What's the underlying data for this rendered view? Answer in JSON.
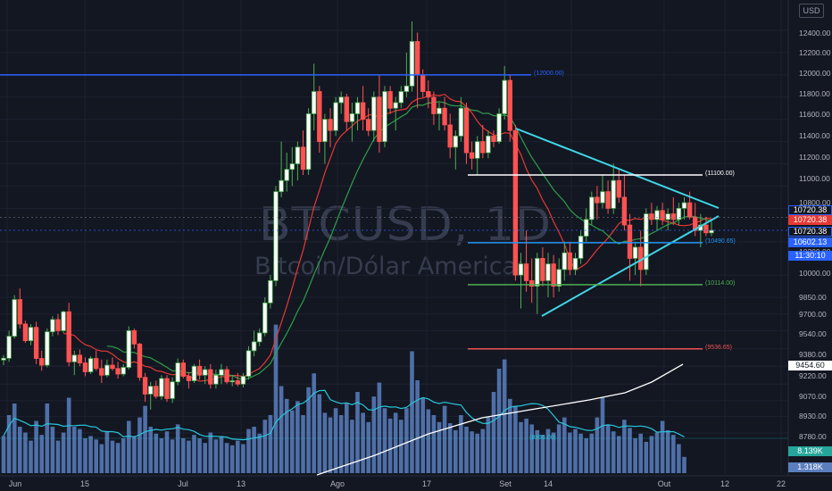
{
  "symbol": {
    "ticker": "BTCUSD, 1D",
    "description": "Bitcoin/Dólar Americano"
  },
  "currency": "USD",
  "colors": {
    "up": "#4caf50",
    "down": "#ff5252",
    "volume": "#5b7fbe",
    "background": "#131722",
    "axis_text": "#b2b5be",
    "triangle": "#3fd6e6",
    "ma_slow": "#e53935",
    "ma_fast": "#2e9e4a",
    "ma_long": "#ffffff",
    "vol_ma": "#26c6da"
  },
  "price_axis": {
    "ticks": [
      "12400.00",
      "12200.00",
      "12000.00",
      "11800.00",
      "11600.00",
      "11400.00",
      "11200.00",
      "11000.00",
      "10800.00",
      "10500.00",
      "10200.00",
      "10000.00",
      "9850.00",
      "9700.00",
      "9540.00",
      "9380.00",
      "9220.00",
      "9070.00",
      "8930.00",
      "8780.00"
    ]
  },
  "time_axis": {
    "labels": [
      "Jun",
      "15",
      "Jul",
      "13",
      "Ago",
      "17",
      "Set",
      "14",
      "Out",
      "12",
      "22"
    ]
  },
  "price_tags": [
    {
      "text": "10720.38",
      "bg": "#131722",
      "fg": "#ffffff",
      "border": "#2962ff"
    },
    {
      "text": "10720.38",
      "bg": "#e53935",
      "fg": "#ffffff",
      "border": "#e53935"
    },
    {
      "text": "10720.38",
      "bg": "#131722",
      "fg": "#ffffff",
      "border": "#2962ff"
    },
    {
      "text": "10602.13",
      "bg": "#2962ff",
      "fg": "#ffffff",
      "border": "#2962ff"
    },
    {
      "text": "11:30:10",
      "bg": "#2962ff",
      "fg": "#ffffff",
      "border": "#2962ff"
    },
    {
      "text": "9454.60",
      "bg": "#ffffff",
      "fg": "#131722",
      "border": "#ffffff"
    },
    {
      "text": "8.139K",
      "bg": "#26a69a",
      "fg": "#ffffff",
      "border": "#26a69a"
    },
    {
      "text": "1.318K",
      "bg": "#5b7fbe",
      "fg": "#ffffff",
      "border": "#5b7fbe"
    }
  ],
  "level_lines": [
    {
      "label": "(12000.00)",
      "price": 12000.0,
      "color": "#2962ff"
    },
    {
      "label": "(11100.00)",
      "price": 11100.0,
      "color": "#ffffff"
    },
    {
      "label": "(10490.65)",
      "price": 10490.65,
      "color": "#2196f3"
    },
    {
      "label": "(10114.00)",
      "price": 10114.0,
      "color": "#4caf50"
    },
    {
      "label": "(9536.65)",
      "price": 9536.65,
      "color": "#ef5350"
    }
  ],
  "volume_ma_label": "(8866.00)",
  "chart_data": {
    "type": "candlestick",
    "candles": [
      {
        "o": 9436,
        "h": 9480,
        "l": 9390,
        "c": 9452
      },
      {
        "o": 9452,
        "h": 9700,
        "l": 9420,
        "c": 9650
      },
      {
        "o": 9650,
        "h": 10020,
        "l": 9630,
        "c": 9980
      },
      {
        "o": 9980,
        "h": 10080,
        "l": 9720,
        "c": 9760
      },
      {
        "o": 9760,
        "h": 9790,
        "l": 9590,
        "c": 9610
      },
      {
        "o": 9610,
        "h": 9760,
        "l": 9570,
        "c": 9730
      },
      {
        "o": 9730,
        "h": 9780,
        "l": 9400,
        "c": 9450
      },
      {
        "o": 9450,
        "h": 9520,
        "l": 9340,
        "c": 9390
      },
      {
        "o": 9390,
        "h": 9720,
        "l": 9370,
        "c": 9690
      },
      {
        "o": 9690,
        "h": 9830,
        "l": 9650,
        "c": 9800
      },
      {
        "o": 9800,
        "h": 9850,
        "l": 9660,
        "c": 9700
      },
      {
        "o": 9700,
        "h": 9880,
        "l": 9680,
        "c": 9870
      },
      {
        "o": 9870,
        "h": 9950,
        "l": 9380,
        "c": 9420
      },
      {
        "o": 9420,
        "h": 9520,
        "l": 9300,
        "c": 9480
      },
      {
        "o": 9480,
        "h": 9530,
        "l": 9380,
        "c": 9410
      },
      {
        "o": 9410,
        "h": 9460,
        "l": 9290,
        "c": 9330
      },
      {
        "o": 9330,
        "h": 9470,
        "l": 9310,
        "c": 9450
      },
      {
        "o": 9450,
        "h": 9520,
        "l": 9340,
        "c": 9360
      },
      {
        "o": 9360,
        "h": 9440,
        "l": 9230,
        "c": 9300
      },
      {
        "o": 9300,
        "h": 9440,
        "l": 9280,
        "c": 9390
      },
      {
        "o": 9390,
        "h": 9460,
        "l": 9340,
        "c": 9360
      },
      {
        "o": 9360,
        "h": 9420,
        "l": 9270,
        "c": 9310
      },
      {
        "o": 9310,
        "h": 9400,
        "l": 9290,
        "c": 9370
      },
      {
        "o": 9370,
        "h": 9740,
        "l": 9350,
        "c": 9700
      },
      {
        "o": 9700,
        "h": 9720,
        "l": 9540,
        "c": 9580
      },
      {
        "o": 9580,
        "h": 9590,
        "l": 9250,
        "c": 9280
      },
      {
        "o": 9280,
        "h": 9320,
        "l": 9060,
        "c": 9130
      },
      {
        "o": 9130,
        "h": 9240,
        "l": 8990,
        "c": 9200
      },
      {
        "o": 9200,
        "h": 9250,
        "l": 9090,
        "c": 9110
      },
      {
        "o": 9110,
        "h": 9300,
        "l": 9080,
        "c": 9270
      },
      {
        "o": 9270,
        "h": 9300,
        "l": 9060,
        "c": 9090
      },
      {
        "o": 9090,
        "h": 9280,
        "l": 9050,
        "c": 9240
      },
      {
        "o": 9240,
        "h": 9450,
        "l": 9210,
        "c": 9410
      },
      {
        "o": 9410,
        "h": 9440,
        "l": 9270,
        "c": 9290
      },
      {
        "o": 9290,
        "h": 9330,
        "l": 9180,
        "c": 9250
      },
      {
        "o": 9250,
        "h": 9400,
        "l": 9230,
        "c": 9380
      },
      {
        "o": 9380,
        "h": 9440,
        "l": 9260,
        "c": 9300
      },
      {
        "o": 9300,
        "h": 9380,
        "l": 9220,
        "c": 9350
      },
      {
        "o": 9350,
        "h": 9400,
        "l": 9180,
        "c": 9220
      },
      {
        "o": 9220,
        "h": 9350,
        "l": 9180,
        "c": 9300
      },
      {
        "o": 9300,
        "h": 9400,
        "l": 9220,
        "c": 9350
      },
      {
        "o": 9350,
        "h": 9380,
        "l": 9220,
        "c": 9240
      },
      {
        "o": 9240,
        "h": 9300,
        "l": 9200,
        "c": 9250
      },
      {
        "o": 9250,
        "h": 9320,
        "l": 9200,
        "c": 9220
      },
      {
        "o": 9220,
        "h": 9320,
        "l": 9190,
        "c": 9290
      },
      {
        "o": 9290,
        "h": 9560,
        "l": 9260,
        "c": 9520
      },
      {
        "o": 9520,
        "h": 9700,
        "l": 9470,
        "c": 9600
      },
      {
        "o": 9600,
        "h": 9720,
        "l": 9560,
        "c": 9680
      },
      {
        "o": 9680,
        "h": 10000,
        "l": 9650,
        "c": 9950
      },
      {
        "o": 9950,
        "h": 10200,
        "l": 9900,
        "c": 10150
      },
      {
        "o": 10150,
        "h": 11000,
        "l": 10100,
        "c": 10950
      },
      {
        "o": 10950,
        "h": 11400,
        "l": 10900,
        "c": 11050
      },
      {
        "o": 11050,
        "h": 11300,
        "l": 10950,
        "c": 11150
      },
      {
        "o": 11150,
        "h": 11350,
        "l": 11000,
        "c": 11200
      },
      {
        "o": 11200,
        "h": 11400,
        "l": 11050,
        "c": 11350
      },
      {
        "o": 11350,
        "h": 11500,
        "l": 11100,
        "c": 11150
      },
      {
        "o": 11150,
        "h": 11700,
        "l": 11100,
        "c": 11650
      },
      {
        "o": 11650,
        "h": 12100,
        "l": 11500,
        "c": 11850
      },
      {
        "o": 11850,
        "h": 11900,
        "l": 11300,
        "c": 11400
      },
      {
        "o": 11400,
        "h": 11650,
        "l": 11200,
        "c": 11600
      },
      {
        "o": 11600,
        "h": 11700,
        "l": 11350,
        "c": 11500
      },
      {
        "o": 11500,
        "h": 11800,
        "l": 11450,
        "c": 11750
      },
      {
        "o": 11750,
        "h": 11850,
        "l": 11650,
        "c": 11800
      },
      {
        "o": 11800,
        "h": 11830,
        "l": 11500,
        "c": 11580
      },
      {
        "o": 11580,
        "h": 11750,
        "l": 11400,
        "c": 11650
      },
      {
        "o": 11650,
        "h": 11800,
        "l": 11500,
        "c": 11750
      },
      {
        "o": 11750,
        "h": 11900,
        "l": 11500,
        "c": 11600
      },
      {
        "o": 11600,
        "h": 11700,
        "l": 11450,
        "c": 11500
      },
      {
        "o": 11500,
        "h": 11850,
        "l": 11400,
        "c": 11800
      },
      {
        "o": 11800,
        "h": 12000,
        "l": 11300,
        "c": 11400
      },
      {
        "o": 11400,
        "h": 11900,
        "l": 11350,
        "c": 11850
      },
      {
        "o": 11850,
        "h": 11900,
        "l": 11650,
        "c": 11700
      },
      {
        "o": 11700,
        "h": 11800,
        "l": 11500,
        "c": 11750
      },
      {
        "o": 11750,
        "h": 11900,
        "l": 11700,
        "c": 11850
      },
      {
        "o": 11850,
        "h": 12200,
        "l": 11800,
        "c": 11900
      },
      {
        "o": 11900,
        "h": 12480,
        "l": 11850,
        "c": 12300
      },
      {
        "o": 12300,
        "h": 12380,
        "l": 11700,
        "c": 12000
      },
      {
        "o": 12000,
        "h": 12050,
        "l": 11800,
        "c": 11850
      },
      {
        "o": 11850,
        "h": 11950,
        "l": 11700,
        "c": 11800
      },
      {
        "o": 11800,
        "h": 11850,
        "l": 11550,
        "c": 11650
      },
      {
        "o": 11650,
        "h": 11750,
        "l": 11500,
        "c": 11700
      },
      {
        "o": 11700,
        "h": 11800,
        "l": 11500,
        "c": 11550
      },
      {
        "o": 11550,
        "h": 11650,
        "l": 11250,
        "c": 11350
      },
      {
        "o": 11350,
        "h": 11500,
        "l": 11150,
        "c": 11450
      },
      {
        "o": 11450,
        "h": 11800,
        "l": 11400,
        "c": 11700
      },
      {
        "o": 11700,
        "h": 11750,
        "l": 11200,
        "c": 11300
      },
      {
        "o": 11300,
        "h": 11400,
        "l": 11150,
        "c": 11250
      },
      {
        "o": 11250,
        "h": 11450,
        "l": 11100,
        "c": 11400
      },
      {
        "o": 11400,
        "h": 11550,
        "l": 11250,
        "c": 11300
      },
      {
        "o": 11300,
        "h": 11500,
        "l": 11250,
        "c": 11450
      },
      {
        "o": 11450,
        "h": 11500,
        "l": 11350,
        "c": 11400
      },
      {
        "o": 11400,
        "h": 11700,
        "l": 11380,
        "c": 11650
      },
      {
        "o": 11650,
        "h": 12080,
        "l": 11600,
        "c": 11950
      },
      {
        "o": 11950,
        "h": 12000,
        "l": 11400,
        "c": 11500
      },
      {
        "o": 11500,
        "h": 11550,
        "l": 10150,
        "c": 10200
      },
      {
        "o": 10200,
        "h": 10400,
        "l": 9900,
        "c": 10300
      },
      {
        "o": 10300,
        "h": 10600,
        "l": 10050,
        "c": 10150
      },
      {
        "o": 10150,
        "h": 10350,
        "l": 9950,
        "c": 10100
      },
      {
        "o": 10100,
        "h": 10400,
        "l": 9850,
        "c": 10350
      },
      {
        "o": 10350,
        "h": 10450,
        "l": 10100,
        "c": 10150
      },
      {
        "o": 10150,
        "h": 10400,
        "l": 10000,
        "c": 10300
      },
      {
        "o": 10300,
        "h": 10380,
        "l": 10000,
        "c": 10100
      },
      {
        "o": 10100,
        "h": 10350,
        "l": 10050,
        "c": 10250
      },
      {
        "o": 10250,
        "h": 10500,
        "l": 10150,
        "c": 10400
      },
      {
        "o": 10400,
        "h": 10500,
        "l": 10200,
        "c": 10250
      },
      {
        "o": 10250,
        "h": 10400,
        "l": 10200,
        "c": 10350
      },
      {
        "o": 10350,
        "h": 10600,
        "l": 10300,
        "c": 10550
      },
      {
        "o": 10550,
        "h": 10800,
        "l": 10500,
        "c": 10700
      },
      {
        "o": 10700,
        "h": 10950,
        "l": 10650,
        "c": 10900
      },
      {
        "o": 10900,
        "h": 11000,
        "l": 10700,
        "c": 10850
      },
      {
        "o": 10850,
        "h": 11100,
        "l": 10800,
        "c": 10950
      },
      {
        "o": 10950,
        "h": 11050,
        "l": 10750,
        "c": 10800
      },
      {
        "o": 10800,
        "h": 11200,
        "l": 10750,
        "c": 11050
      },
      {
        "o": 11050,
        "h": 11150,
        "l": 10850,
        "c": 10900
      },
      {
        "o": 10900,
        "h": 11100,
        "l": 10600,
        "c": 10650
      },
      {
        "o": 10650,
        "h": 10750,
        "l": 10150,
        "c": 10350
      },
      {
        "o": 10350,
        "h": 10500,
        "l": 10200,
        "c": 10450
      },
      {
        "o": 10450,
        "h": 10600,
        "l": 10100,
        "c": 10250
      },
      {
        "o": 10250,
        "h": 10800,
        "l": 10200,
        "c": 10750
      },
      {
        "o": 10750,
        "h": 10850,
        "l": 10650,
        "c": 10700
      },
      {
        "o": 10700,
        "h": 10820,
        "l": 10600,
        "c": 10780
      },
      {
        "o": 10780,
        "h": 10850,
        "l": 10650,
        "c": 10700
      },
      {
        "o": 10700,
        "h": 10800,
        "l": 10600,
        "c": 10750
      },
      {
        "o": 10750,
        "h": 10900,
        "l": 10650,
        "c": 10700
      },
      {
        "o": 10700,
        "h": 10850,
        "l": 10650,
        "c": 10800
      },
      {
        "o": 10800,
        "h": 10900,
        "l": 10700,
        "c": 10850
      },
      {
        "o": 10850,
        "h": 10950,
        "l": 10700,
        "c": 10720
      },
      {
        "o": 10720,
        "h": 10850,
        "l": 10550,
        "c": 10600
      },
      {
        "o": 10600,
        "h": 10750,
        "l": 10450,
        "c": 10650
      },
      {
        "o": 10650,
        "h": 10720,
        "l": 10550,
        "c": 10580
      },
      {
        "o": 10580,
        "h": 10680,
        "l": 10550,
        "c": 10602
      }
    ],
    "volume": [
      3.2,
      5,
      6,
      4,
      3.5,
      2.8,
      4.5,
      3.3,
      6,
      4,
      2.8,
      3.5,
      6.5,
      4,
      3.8,
      3,
      3.2,
      2.9,
      2.5,
      3.6,
      2.8,
      2.6,
      3,
      4.5,
      3.2,
      4.8,
      5.8,
      4,
      3.4,
      3,
      3.6,
      2.9,
      4.2,
      3,
      2.8,
      3.3,
      3,
      2.6,
      3.5,
      2.9,
      3.2,
      2.6,
      2.4,
      2.8,
      2.5,
      3.8,
      4,
      3.4,
      4.6,
      5,
      12.8,
      7.5,
      6.4,
      5.4,
      6.2,
      5,
      7.4,
      8.6,
      6.8,
      5.2,
      4.8,
      5.6,
      5,
      6,
      4.6,
      7,
      5.2,
      4.4,
      6.6,
      7.8,
      5.6,
      4.7,
      5.2,
      4.6,
      5.6,
      10.5,
      8,
      6.5,
      5.5,
      5,
      4.4,
      5.8,
      4.3,
      3.7,
      5,
      4,
      3.6,
      3.4,
      3.8,
      4.8,
      7,
      9,
      9.8,
      6.4,
      5.8,
      4.4,
      4.7,
      4.2,
      3.7,
      3.3,
      3.8,
      3.5,
      4.2,
      4.8,
      3.5,
      3.8,
      3.4,
      3,
      3.4,
      4.8,
      6.5,
      4.2,
      3.6,
      3.2,
      4.6,
      3.9,
      3,
      3.4,
      2.7,
      3.2,
      3.5,
      4.5,
      3.7,
      3.3,
      2.5,
      1.4
    ],
    "xlabel": "",
    "ylabel": "",
    "ylim": [
      8780,
      12480
    ],
    "grid": true
  }
}
